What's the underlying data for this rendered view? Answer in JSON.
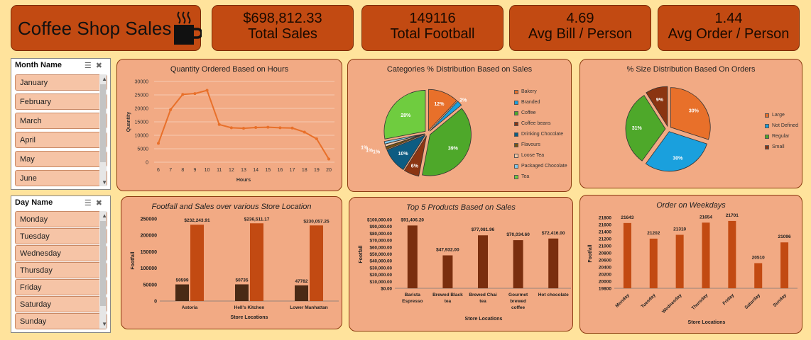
{
  "header": {
    "title": "Coffee Shop Sales"
  },
  "kpis": [
    {
      "value": "$698,812.33",
      "label": "Total Sales"
    },
    {
      "value": "149116",
      "label": "Total Football"
    },
    {
      "value": "4.69",
      "label": "Avg Bill / Person"
    },
    {
      "value": "1.44",
      "label": "Avg Order / Person"
    }
  ],
  "slicers": {
    "month": {
      "title": "Month Name",
      "items": [
        "January",
        "February",
        "March",
        "April",
        "May",
        "June"
      ]
    },
    "day": {
      "title": "Day Name",
      "items": [
        "Monday",
        "Tuesday",
        "Wednesday",
        "Thursday",
        "Friday",
        "Saturday",
        "Sunday"
      ]
    }
  },
  "colors": {
    "background": "#FFE39C",
    "kpi": "#C24A12",
    "panel": "#F2AA84",
    "line": "#E8702A",
    "bar_dark": "#4A2A15",
    "bar_orange": "#C24A12",
    "bar_brown": "#7A2E0E"
  },
  "chart_data": [
    {
      "id": "hours",
      "type": "line",
      "title": "Quantity Ordered Based on Hours",
      "xlabel": "Hours",
      "ylabel": "Quantity",
      "x": [
        "6",
        "7",
        "8",
        "9",
        "10",
        "11",
        "12",
        "13",
        "14",
        "15",
        "16",
        "17",
        "18",
        "19",
        "20"
      ],
      "values": [
        7000,
        19500,
        25200,
        25500,
        26700,
        14000,
        12800,
        12600,
        12900,
        13000,
        12800,
        12700,
        11200,
        8700,
        1200
      ],
      "ylim": [
        0,
        30000
      ],
      "yticks": [
        "0",
        "5000",
        "10000",
        "15000",
        "20000",
        "25000",
        "30000"
      ],
      "grid": true
    },
    {
      "id": "categories",
      "type": "pie",
      "title": "Categories % Distribution Based on Sales",
      "labels": [
        "Bakery",
        "Branded",
        "Coffee",
        "Coffee beans",
        "Drinking Chocolate",
        "Flavours",
        "Loose Tea",
        "Packaged Chocolate",
        "Tea"
      ],
      "values": [
        12,
        2,
        39,
        6,
        10,
        1,
        1,
        1,
        28
      ],
      "data_labels": [
        "12%",
        "2%",
        "39%",
        "6%",
        "10%",
        "1%",
        "1%",
        "1%",
        "28%"
      ],
      "colors": [
        "#E8702A",
        "#1AA0DD",
        "#4EA82A",
        "#8B3512",
        "#0D5C82",
        "#7A5410",
        "#F2C8A8",
        "#7FC8EA",
        "#6FCC3F"
      ],
      "legend": "right"
    },
    {
      "id": "sizes",
      "type": "pie",
      "title": "% Size Distribution Based On Orders",
      "labels": [
        "Large",
        "Not Defined",
        "Regular",
        "Small"
      ],
      "values": [
        30,
        30,
        31,
        9
      ],
      "data_labels": [
        "30%",
        "30%",
        "31%",
        "9%"
      ],
      "colors": [
        "#E8702A",
        "#1AA0DD",
        "#4EA82A",
        "#8B3512"
      ],
      "legend": "right"
    },
    {
      "id": "footfall",
      "type": "bar",
      "title": "Footfall and Sales over various Store Location",
      "xlabel": "Store Locations",
      "ylabel": "Footfall",
      "categories": [
        "Astoria",
        "Hell's Kitchen",
        "Lower Manhattan"
      ],
      "series": [
        {
          "values": [
            50599,
            50735,
            47782
          ],
          "labels": [
            "50599",
            "50735",
            "47782"
          ]
        },
        {
          "values": [
            232243.91,
            236511.17,
            230057.25
          ],
          "labels": [
            "$232,243.91",
            "$236,511.17",
            "$230,057.25"
          ]
        }
      ],
      "ylim": [
        0,
        250000
      ],
      "yticks": [
        "0",
        "50000",
        "100000",
        "150000",
        "200000",
        "250000"
      ]
    },
    {
      "id": "products",
      "type": "bar",
      "title": "Top 5 Products Based on Sales",
      "xlabel": "Store Locations",
      "ylabel": "Footfall",
      "categories": [
        [
          "Barista",
          "Espresso"
        ],
        [
          "Brewed Black",
          "tea"
        ],
        [
          "Brewed Chai",
          "tea"
        ],
        [
          "Gourmet",
          "brewed",
          "coffee"
        ],
        [
          "Hot chocolate"
        ]
      ],
      "values": [
        91406.2,
        47932,
        77081.96,
        70034.6,
        72416
      ],
      "data_labels": [
        "$91,406.20",
        "$47,932.00",
        "$77,081.96",
        "$70,034.60",
        "$72,416.00"
      ],
      "ylim": [
        0,
        100000
      ],
      "yticks": [
        "$0.00",
        "$10,000.00",
        "$20,000.00",
        "$30,000.00",
        "$40,000.00",
        "$50,000.00",
        "$60,000.00",
        "$70,000.00",
        "$80,000.00",
        "$90,000.00",
        "$100,000.00"
      ]
    },
    {
      "id": "weekdays",
      "type": "bar",
      "title": "Order on Weekdays",
      "xlabel": "Store Locations",
      "ylabel": "Footfall",
      "categories": [
        "Monday",
        "Tuesday",
        "Wednesday",
        "Thursday",
        "Friday",
        "Saturday",
        "Sunday"
      ],
      "values": [
        21643,
        21202,
        21310,
        21654,
        21701,
        20510,
        21096
      ],
      "data_labels": [
        "21643",
        "21202",
        "21310",
        "21654",
        "21701",
        "20510",
        "21096"
      ],
      "ylim": [
        19800,
        21800
      ],
      "yticks": [
        "19800",
        "20000",
        "20200",
        "20400",
        "20600",
        "20800",
        "21000",
        "21200",
        "21400",
        "21600",
        "21800"
      ]
    }
  ]
}
